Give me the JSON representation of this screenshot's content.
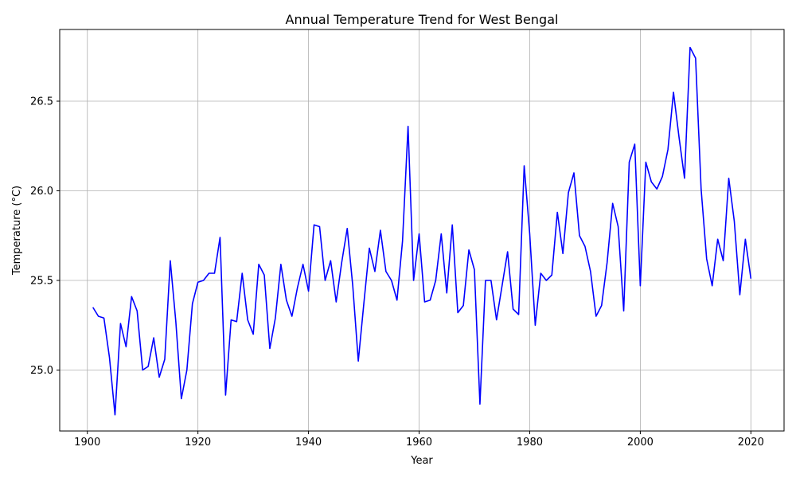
{
  "chart_data": {
    "type": "line",
    "title": "Annual Temperature Trend for West Bengal",
    "xlabel": "Year",
    "ylabel": "Temperature (°C)",
    "xlim": [
      1895,
      2026
    ],
    "ylim": [
      24.66,
      26.9
    ],
    "x_ticks": [
      1900,
      1920,
      1940,
      1960,
      1980,
      2000,
      2020
    ],
    "y_ticks": [
      25.0,
      25.5,
      26.0,
      26.5
    ],
    "grid": true,
    "legend": "none",
    "line_color": "#0000ff",
    "series": [
      {
        "x": [
          1901,
          1902,
          1903,
          1904,
          1905,
          1906,
          1907,
          1908,
          1909,
          1910,
          1911,
          1912,
          1913,
          1914,
          1915,
          1916,
          1917,
          1918,
          1919,
          1920,
          1921,
          1922,
          1923,
          1924,
          1925,
          1926,
          1927,
          1928,
          1929,
          1930,
          1931,
          1932,
          1933,
          1934,
          1935,
          1936,
          1937,
          1938,
          1939,
          1940,
          1941,
          1942,
          1943,
          1944,
          1945,
          1946,
          1947,
          1948,
          1949,
          1950,
          1951,
          1952,
          1953,
          1954,
          1955,
          1956,
          1957,
          1958,
          1959,
          1960,
          1961,
          1962,
          1963,
          1964,
          1965,
          1966,
          1967,
          1968,
          1969,
          1970,
          1971,
          1972,
          1973,
          1974,
          1975,
          1976,
          1977,
          1978,
          1979,
          1980,
          1981,
          1982,
          1983,
          1984,
          1985,
          1986,
          1987,
          1988,
          1989,
          1990,
          1991,
          1992,
          1993,
          1994,
          1995,
          1996,
          1997,
          1998,
          1999,
          2000,
          2001,
          2002,
          2003,
          2004,
          2005,
          2006,
          2007,
          2008,
          2009,
          2010,
          2011,
          2012,
          2013,
          2014,
          2015,
          2016,
          2017,
          2018,
          2019,
          2020
        ],
        "values": [
          25.35,
          25.3,
          25.29,
          25.07,
          24.75,
          25.26,
          25.13,
          25.41,
          25.33,
          25.0,
          25.02,
          25.18,
          24.96,
          25.06,
          25.61,
          25.27,
          24.84,
          25.0,
          25.37,
          25.49,
          25.5,
          25.54,
          25.54,
          25.74,
          24.86,
          25.28,
          25.27,
          25.54,
          25.28,
          25.2,
          25.59,
          25.53,
          25.12,
          25.29,
          25.59,
          25.39,
          25.3,
          25.46,
          25.59,
          25.44,
          25.81,
          25.8,
          25.5,
          25.61,
          25.38,
          25.6,
          25.79,
          25.47,
          25.05,
          25.37,
          25.68,
          25.55,
          25.78,
          25.55,
          25.5,
          25.39,
          25.72,
          26.36,
          25.5,
          25.76,
          25.38,
          25.39,
          25.5,
          25.76,
          25.43,
          25.81,
          25.32,
          25.36,
          25.67,
          25.56,
          24.81,
          25.5,
          25.5,
          25.28,
          25.47,
          25.66,
          25.34,
          25.31,
          26.14,
          25.76,
          25.25,
          25.54,
          25.5,
          25.53,
          25.88,
          25.65,
          25.99,
          26.1,
          25.75,
          25.69,
          25.55,
          25.3,
          25.36,
          25.6,
          25.93,
          25.8,
          25.33,
          26.16,
          26.26,
          25.47,
          26.16,
          26.05,
          26.01,
          26.08,
          26.23,
          26.55,
          26.3,
          26.07,
          26.8,
          26.74,
          26.01,
          25.62,
          25.47,
          25.73,
          25.61,
          26.07,
          25.83,
          25.42,
          25.73,
          25.51
        ]
      }
    ]
  }
}
